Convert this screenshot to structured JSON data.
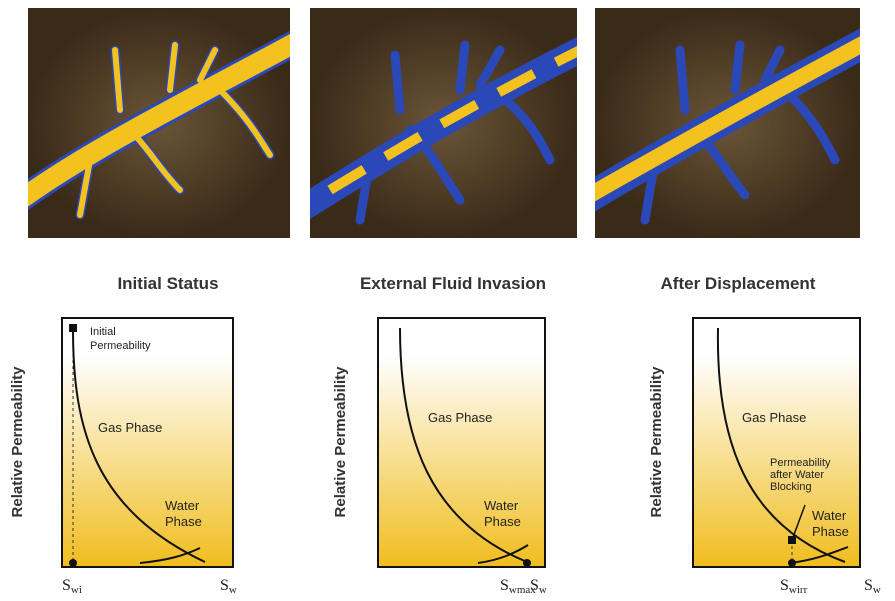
{
  "panels": [
    {
      "title": "Initial Status",
      "y_axis_label": "Relative Permeability",
      "annotations": [
        {
          "lines": [
            "Initial",
            "Permeability"
          ]
        },
        {
          "lines": [
            "Gas Phase"
          ]
        },
        {
          "lines": [
            "Water",
            "Phase"
          ]
        }
      ],
      "x_labels": [
        {
          "base": "S",
          "sub": "wi"
        },
        {
          "base": "S",
          "sub": "w"
        }
      ]
    },
    {
      "title": "External Fluid Invasion",
      "y_axis_label": "Relative Permeability",
      "annotations": [
        {
          "lines": [
            "Gas Phase"
          ]
        },
        {
          "lines": [
            "Water",
            "Phase"
          ]
        }
      ],
      "x_labels": [
        {
          "base": "S",
          "sub": "wmax"
        },
        {
          "base": "S",
          "sub": "w"
        }
      ]
    },
    {
      "title": "After Displacement",
      "y_axis_label": "Relative Permeability",
      "annotations": [
        {
          "lines": [
            "Gas Phase"
          ]
        },
        {
          "lines": [
            "Permeability",
            "after Water",
            "Blocking"
          ]
        },
        {
          "lines": [
            "Water",
            "Phase"
          ]
        }
      ],
      "x_labels": [
        {
          "base": "S",
          "sub": "wirr"
        },
        {
          "base": "S",
          "sub": "w"
        }
      ]
    }
  ]
}
